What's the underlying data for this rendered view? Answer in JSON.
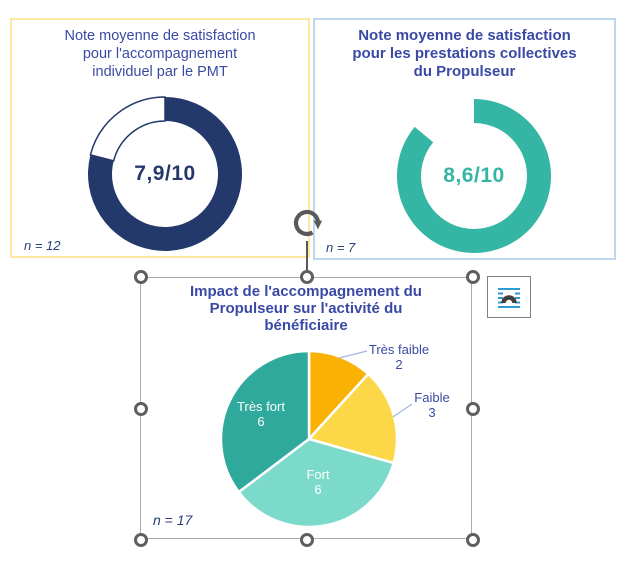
{
  "chart_data": [
    {
      "name": "note-satisfaction-accompagnement-individuel",
      "type": "donut",
      "title": "Note moyenne de satisfaction\npour l'accompagnement\nindividuel par le PMT",
      "center_label": "7,9/10",
      "value": 7.9,
      "max": 10,
      "n_label": "n = 12",
      "ring_color": "#24396B",
      "value_color": "#24396B",
      "empty_color": "#FFFFFF",
      "empty_segment_outlined": true,
      "card_border_color": "#FFE8A0"
    },
    {
      "name": "note-satisfaction-prestations-collectives",
      "type": "donut",
      "title": "Note moyenne de satisfaction\npour les prestations collectives\ndu Propulseur",
      "center_label": "8,6/10",
      "value": 8.6,
      "max": 10,
      "n_label": "n = 7",
      "ring_color": "#35B5A4",
      "value_color": "#35B5A4",
      "empty_color": "#FFFFFF",
      "empty_segment_outlined": false,
      "card_border_color": "#BDD7EE"
    },
    {
      "name": "impact-accompagnement-propulseur",
      "type": "pie",
      "title": "Impact de l'accompagnement du\nPropulseur sur l'activité du\nbénéficiaire",
      "n_label": "n = 17",
      "total": 17,
      "start_angle_deg": 0,
      "direction": "clockwise",
      "slices": [
        {
          "label": "Très faible",
          "value": 2,
          "color": "#F9B104",
          "label_placement": "outside"
        },
        {
          "label": "Faible",
          "value": 3,
          "color": "#FCD849",
          "label_placement": "outside"
        },
        {
          "label": "Fort",
          "value": 6,
          "color": "#7CDACB",
          "label_placement": "inside"
        },
        {
          "label": "Très fort",
          "value": 6,
          "color": "#2FA99B",
          "label_placement": "inside"
        }
      ],
      "slice_label_colors": {
        "inside": "#FFFFFF",
        "outside": "#3A4AA4"
      },
      "leader_line_color": "#9FB9DF"
    }
  ],
  "ui": {
    "title_color": "#3A4AA4",
    "n_label_color": "#2A3F79",
    "selection": {
      "border_color": "#ABABAB",
      "handle_color": "#5F5F5F",
      "rotate_icon": "rotate-clockwise-icon",
      "icon_color": "#595959"
    },
    "layout_options_button": {
      "icon": "layout-options-icon",
      "border_color": "#808080",
      "line_color": "#2E9BD5",
      "arch_color": "#404040"
    }
  }
}
